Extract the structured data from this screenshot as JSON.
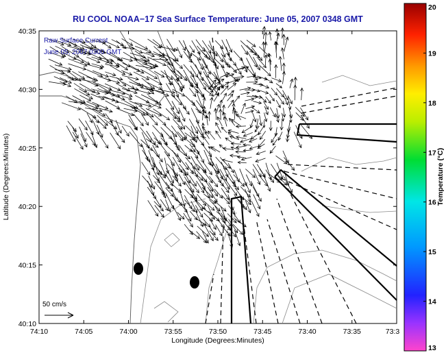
{
  "chart_data": {
    "type": "quiver",
    "title": "RU COOL  NOAA−17  Sea Surface Temperature:  June 05, 2007 0348 GMT",
    "xlabel": "Longitude (Degrees:Minutes)",
    "ylabel": "Latitude (Degrees:Minutes)",
    "legend_text": [
      "Raw Surface Current",
      "June 05, 2007 0300 GMT"
    ],
    "x_ticks": [
      "74:10",
      "74:05",
      "74:00",
      "73:55",
      "73:50",
      "73:45",
      "73:40",
      "73:35",
      "73:3"
    ],
    "y_ticks": [
      "40:10",
      "40:15",
      "40:20",
      "40:25",
      "40:30",
      "40:35"
    ],
    "xlim_deg": [
      -74.1667,
      -73.5
    ],
    "ylim_deg": [
      40.1667,
      40.5833
    ],
    "scale_label": "50 cm/s",
    "colorbar": {
      "label": "Temperature (°C)",
      "ticks": [
        "13",
        "14",
        "15",
        "16",
        "17",
        "18",
        "19",
        "20"
      ],
      "range": [
        13,
        20
      ]
    },
    "current_vectors_sample": [
      {
        "lon": -74.083,
        "lat": 40.533,
        "u": 40,
        "v": -15
      },
      {
        "lon": -74.033,
        "lat": 40.5,
        "u": 45,
        "v": -25
      },
      {
        "lon": -73.95,
        "lat": 40.45,
        "u": 35,
        "v": -40
      },
      {
        "lon": -73.9,
        "lat": 40.4,
        "u": 20,
        "v": -45
      },
      {
        "lon": -73.8,
        "lat": 40.45,
        "u": -20,
        "v": -10
      },
      {
        "lon": -73.733,
        "lat": 40.5,
        "u": 5,
        "v": 30
      }
    ]
  }
}
